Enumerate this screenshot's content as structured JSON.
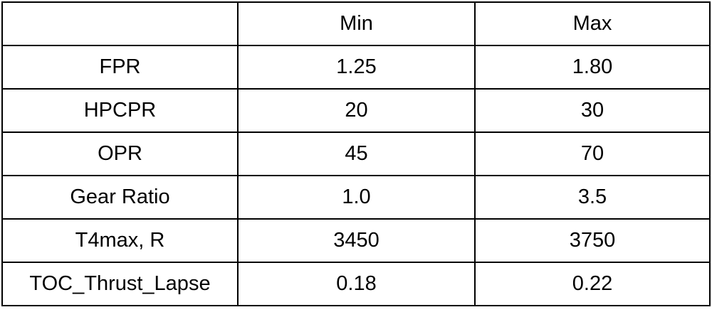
{
  "table": {
    "columns": [
      "",
      "Min",
      "Max"
    ],
    "rows": [
      {
        "label": "FPR",
        "min": "1.25",
        "max": "1.80"
      },
      {
        "label": "HPCPR",
        "min": "20",
        "max": "30"
      },
      {
        "label": "OPR",
        "min": "45",
        "max": "70"
      },
      {
        "label": "Gear Ratio",
        "min": "1.0",
        "max": "3.5"
      },
      {
        "label": "T4max, R",
        "min": "3450",
        "max": "3750"
      },
      {
        "label": "TOC_Thrust_Lapse",
        "min": "0.18",
        "max": "0.22"
      }
    ]
  }
}
